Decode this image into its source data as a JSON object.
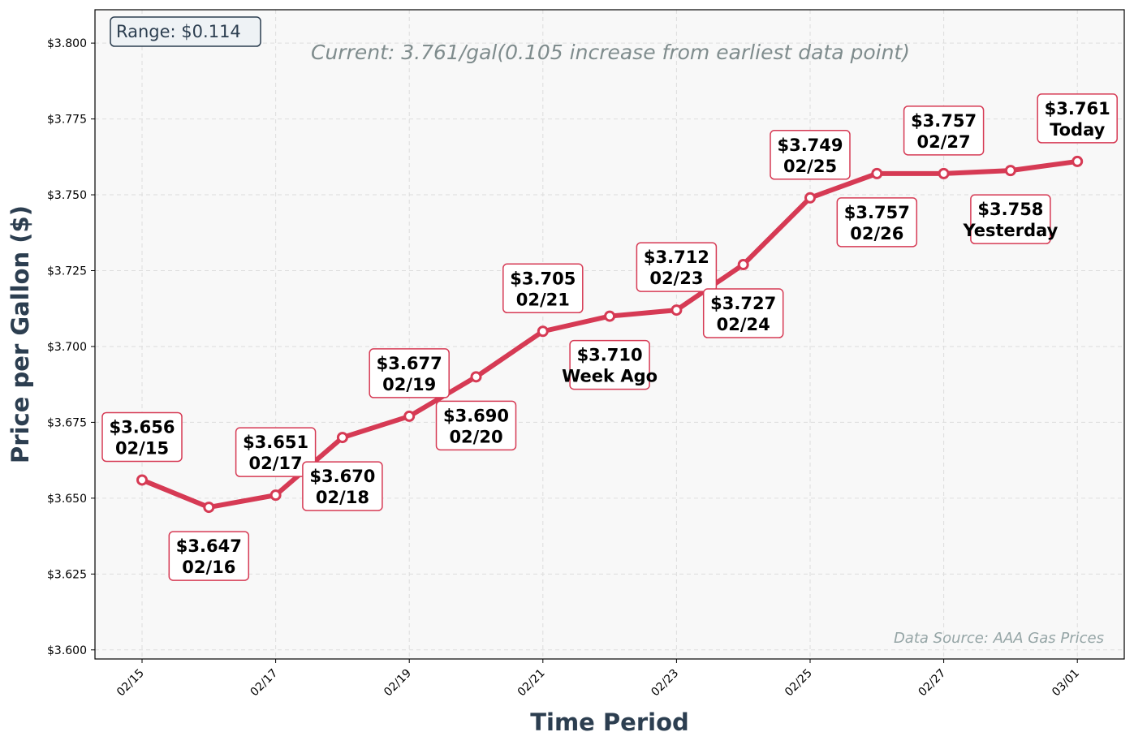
{
  "chart_data": {
    "type": "line",
    "title": "",
    "subtitle": "Current: 3.761/gal(0.105 increase from earliest data point)",
    "xlabel": "Time Period",
    "ylabel": "Price per Gallon ($)",
    "range_box": "Range: $0.114",
    "source_note": "Data Source: AAA Gas Prices",
    "ylim": [
      3.597,
      3.811
    ],
    "y_ticks": [
      3.6,
      3.625,
      3.65,
      3.675,
      3.7,
      3.725,
      3.75,
      3.775,
      3.8
    ],
    "y_tick_labels": [
      "$3.600",
      "$3.625",
      "$3.650",
      "$3.675",
      "$3.700",
      "$3.725",
      "$3.750",
      "$3.775",
      "$3.800"
    ],
    "x_tick_labels": [
      "02/15",
      "02/17",
      "02/19",
      "02/21",
      "02/23",
      "02/25",
      "02/27",
      "03/01"
    ],
    "grid": true,
    "line_color": "#d63a54",
    "x": [
      "02/15",
      "02/16",
      "02/17",
      "02/18",
      "02/19",
      "02/20",
      "02/21",
      "02/22",
      "02/23",
      "02/24",
      "02/25",
      "02/26",
      "02/27",
      "02/28",
      "03/01"
    ],
    "values": [
      3.656,
      3.647,
      3.651,
      3.67,
      3.677,
      3.69,
      3.705,
      3.71,
      3.712,
      3.727,
      3.749,
      3.757,
      3.757,
      3.758,
      3.761
    ],
    "annotations": [
      {
        "price": "$3.656",
        "label": "02/15",
        "placement": "above"
      },
      {
        "price": "$3.647",
        "label": "02/16",
        "placement": "below"
      },
      {
        "price": "$3.651",
        "label": "02/17",
        "placement": "above"
      },
      {
        "price": "$3.670",
        "label": "02/18",
        "placement": "below"
      },
      {
        "price": "$3.677",
        "label": "02/19",
        "placement": "above"
      },
      {
        "price": "$3.690",
        "label": "02/20",
        "placement": "below"
      },
      {
        "price": "$3.705",
        "label": "02/21",
        "placement": "above"
      },
      {
        "price": "$3.710",
        "label": "Week Ago",
        "placement": "below"
      },
      {
        "price": "$3.712",
        "label": "02/23",
        "placement": "above"
      },
      {
        "price": "$3.727",
        "label": "02/24",
        "placement": "below"
      },
      {
        "price": "$3.749",
        "label": "02/25",
        "placement": "above"
      },
      {
        "price": "$3.757",
        "label": "02/26",
        "placement": "below"
      },
      {
        "price": "$3.757",
        "label": "02/27",
        "placement": "above"
      },
      {
        "price": "$3.758",
        "label": "Yesterday",
        "placement": "below"
      },
      {
        "price": "$3.761",
        "label": "Today",
        "placement": "above"
      }
    ]
  }
}
